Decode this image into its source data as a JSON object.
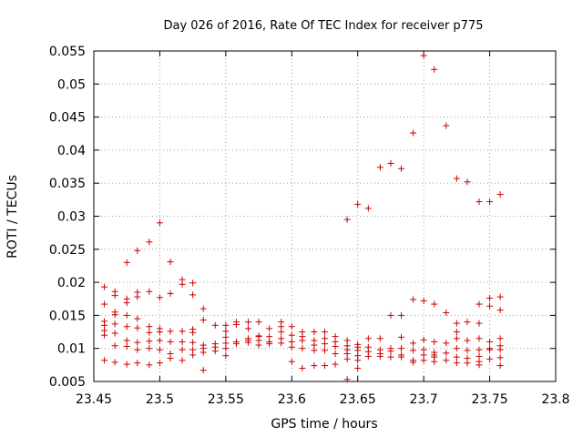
{
  "chart_data": {
    "type": "scatter",
    "title": "Day 026 of 2016, Rate Of TEC Index for receiver p775",
    "xlabel": "GPS time / hours",
    "ylabel": "ROTI / TECUs",
    "xlim": [
      23.45,
      23.8
    ],
    "ylim": [
      0.005,
      0.055
    ],
    "xticks": [
      "23.45",
      "23.5",
      "23.55",
      "23.6",
      "23.65",
      "23.7",
      "23.75",
      "23.8"
    ],
    "yticks": [
      "0.005",
      "0.01",
      "0.015",
      "0.02",
      "0.025",
      "0.03",
      "0.035",
      "0.04",
      "0.045",
      "0.05",
      "0.055"
    ],
    "grid": true,
    "marker": "+",
    "color": "#cc0000",
    "series": [
      {
        "name": "p775",
        "points": [
          [
            23.458,
            0.0193
          ],
          [
            23.458,
            0.0167
          ],
          [
            23.458,
            0.0141
          ],
          [
            23.458,
            0.0135
          ],
          [
            23.458,
            0.0127
          ],
          [
            23.458,
            0.012
          ],
          [
            23.458,
            0.0082
          ],
          [
            23.466,
            0.0186
          ],
          [
            23.466,
            0.018
          ],
          [
            23.466,
            0.0155
          ],
          [
            23.466,
            0.0151
          ],
          [
            23.466,
            0.0137
          ],
          [
            23.466,
            0.0123
          ],
          [
            23.466,
            0.0104
          ],
          [
            23.466,
            0.0079
          ],
          [
            23.475,
            0.023
          ],
          [
            23.475,
            0.0175
          ],
          [
            23.475,
            0.0169
          ],
          [
            23.475,
            0.015
          ],
          [
            23.475,
            0.0133
          ],
          [
            23.475,
            0.0112
          ],
          [
            23.475,
            0.0103
          ],
          [
            23.475,
            0.0076
          ],
          [
            23.483,
            0.0248
          ],
          [
            23.483,
            0.0185
          ],
          [
            23.483,
            0.0178
          ],
          [
            23.483,
            0.0145
          ],
          [
            23.483,
            0.0131
          ],
          [
            23.483,
            0.0109
          ],
          [
            23.483,
            0.0098
          ],
          [
            23.483,
            0.0078
          ],
          [
            23.492,
            0.0261
          ],
          [
            23.492,
            0.0186
          ],
          [
            23.492,
            0.0133
          ],
          [
            23.492,
            0.0124
          ],
          [
            23.492,
            0.0111
          ],
          [
            23.492,
            0.01
          ],
          [
            23.492,
            0.0075
          ],
          [
            23.5,
            0.029
          ],
          [
            23.5,
            0.0177
          ],
          [
            23.5,
            0.013
          ],
          [
            23.5,
            0.0125
          ],
          [
            23.5,
            0.0112
          ],
          [
            23.5,
            0.0098
          ],
          [
            23.5,
            0.0078
          ],
          [
            23.508,
            0.0231
          ],
          [
            23.508,
            0.0183
          ],
          [
            23.508,
            0.0126
          ],
          [
            23.508,
            0.011
          ],
          [
            23.508,
            0.0092
          ],
          [
            23.508,
            0.0085
          ],
          [
            23.517,
            0.0204
          ],
          [
            23.517,
            0.0197
          ],
          [
            23.517,
            0.0126
          ],
          [
            23.517,
            0.011
          ],
          [
            23.517,
            0.0098
          ],
          [
            23.517,
            0.0082
          ],
          [
            23.525,
            0.0199
          ],
          [
            23.525,
            0.0181
          ],
          [
            23.525,
            0.0129
          ],
          [
            23.525,
            0.0124
          ],
          [
            23.525,
            0.0109
          ],
          [
            23.525,
            0.0098
          ],
          [
            23.525,
            0.009
          ],
          [
            23.533,
            0.016
          ],
          [
            23.533,
            0.0143
          ],
          [
            23.533,
            0.0105
          ],
          [
            23.533,
            0.01
          ],
          [
            23.533,
            0.0094
          ],
          [
            23.533,
            0.0067
          ],
          [
            23.542,
            0.0135
          ],
          [
            23.542,
            0.0107
          ],
          [
            23.542,
            0.0102
          ],
          [
            23.542,
            0.0096
          ],
          [
            23.55,
            0.0135
          ],
          [
            23.55,
            0.0126
          ],
          [
            23.55,
            0.0117
          ],
          [
            23.55,
            0.0108
          ],
          [
            23.55,
            0.01
          ],
          [
            23.55,
            0.0089
          ],
          [
            23.558,
            0.014
          ],
          [
            23.558,
            0.0136
          ],
          [
            23.558,
            0.011
          ],
          [
            23.558,
            0.0107
          ],
          [
            23.567,
            0.014
          ],
          [
            23.567,
            0.013
          ],
          [
            23.567,
            0.0115
          ],
          [
            23.567,
            0.0112
          ],
          [
            23.567,
            0.0109
          ],
          [
            23.575,
            0.014
          ],
          [
            23.575,
            0.0119
          ],
          [
            23.575,
            0.0118
          ],
          [
            23.575,
            0.0112
          ],
          [
            23.575,
            0.0105
          ],
          [
            23.583,
            0.013
          ],
          [
            23.583,
            0.0118
          ],
          [
            23.583,
            0.011
          ],
          [
            23.583,
            0.0107
          ],
          [
            23.592,
            0.014
          ],
          [
            23.592,
            0.0133
          ],
          [
            23.592,
            0.0125
          ],
          [
            23.592,
            0.0115
          ],
          [
            23.592,
            0.0108
          ],
          [
            23.6,
            0.0133
          ],
          [
            23.6,
            0.012
          ],
          [
            23.6,
            0.011
          ],
          [
            23.6,
            0.0102
          ],
          [
            23.6,
            0.008
          ],
          [
            23.608,
            0.0125
          ],
          [
            23.608,
            0.0118
          ],
          [
            23.608,
            0.0112
          ],
          [
            23.608,
            0.01
          ],
          [
            23.608,
            0.007
          ],
          [
            23.617,
            0.0125
          ],
          [
            23.617,
            0.0112
          ],
          [
            23.617,
            0.0105
          ],
          [
            23.617,
            0.0097
          ],
          [
            23.617,
            0.0074
          ],
          [
            23.625,
            0.0125
          ],
          [
            23.625,
            0.0115
          ],
          [
            23.625,
            0.0107
          ],
          [
            23.625,
            0.0097
          ],
          [
            23.625,
            0.0074
          ],
          [
            23.633,
            0.0118
          ],
          [
            23.633,
            0.011
          ],
          [
            23.633,
            0.0103
          ],
          [
            23.633,
            0.0092
          ],
          [
            23.633,
            0.0076
          ],
          [
            23.642,
            0.0295
          ],
          [
            23.642,
            0.0112
          ],
          [
            23.642,
            0.0104
          ],
          [
            23.642,
            0.0098
          ],
          [
            23.642,
            0.0092
          ],
          [
            23.642,
            0.0084
          ],
          [
            23.642,
            0.0053
          ],
          [
            23.65,
            0.0318
          ],
          [
            23.65,
            0.0106
          ],
          [
            23.65,
            0.0102
          ],
          [
            23.65,
            0.0097
          ],
          [
            23.65,
            0.0089
          ],
          [
            23.65,
            0.0082
          ],
          [
            23.65,
            0.007
          ],
          [
            23.658,
            0.0312
          ],
          [
            23.658,
            0.0115
          ],
          [
            23.658,
            0.0102
          ],
          [
            23.658,
            0.0095
          ],
          [
            23.658,
            0.0088
          ],
          [
            23.667,
            0.0374
          ],
          [
            23.667,
            0.0115
          ],
          [
            23.667,
            0.0098
          ],
          [
            23.667,
            0.0092
          ],
          [
            23.667,
            0.0088
          ],
          [
            23.675,
            0.038
          ],
          [
            23.675,
            0.015
          ],
          [
            23.675,
            0.01
          ],
          [
            23.675,
            0.0096
          ],
          [
            23.675,
            0.0087
          ],
          [
            23.683,
            0.0372
          ],
          [
            23.683,
            0.015
          ],
          [
            23.683,
            0.0117
          ],
          [
            23.683,
            0.01
          ],
          [
            23.683,
            0.009
          ],
          [
            23.683,
            0.0087
          ],
          [
            23.692,
            0.0426
          ],
          [
            23.692,
            0.0174
          ],
          [
            23.692,
            0.0108
          ],
          [
            23.692,
            0.0097
          ],
          [
            23.692,
            0.0082
          ],
          [
            23.692,
            0.0079
          ],
          [
            23.7,
            0.0543
          ],
          [
            23.7,
            0.0172
          ],
          [
            23.7,
            0.0113
          ],
          [
            23.7,
            0.0098
          ],
          [
            23.7,
            0.009
          ],
          [
            23.7,
            0.0082
          ],
          [
            23.708,
            0.0522
          ],
          [
            23.708,
            0.0167
          ],
          [
            23.708,
            0.011
          ],
          [
            23.708,
            0.0094
          ],
          [
            23.708,
            0.009
          ],
          [
            23.708,
            0.0087
          ],
          [
            23.708,
            0.008
          ],
          [
            23.717,
            0.0437
          ],
          [
            23.717,
            0.0154
          ],
          [
            23.717,
            0.0108
          ],
          [
            23.717,
            0.0093
          ],
          [
            23.717,
            0.0082
          ],
          [
            23.725,
            0.0357
          ],
          [
            23.725,
            0.0138
          ],
          [
            23.725,
            0.0125
          ],
          [
            23.725,
            0.0115
          ],
          [
            23.725,
            0.01
          ],
          [
            23.725,
            0.0087
          ],
          [
            23.725,
            0.0078
          ],
          [
            23.733,
            0.0352
          ],
          [
            23.733,
            0.014
          ],
          [
            23.733,
            0.0112
          ],
          [
            23.733,
            0.0097
          ],
          [
            23.733,
            0.0085
          ],
          [
            23.733,
            0.0078
          ],
          [
            23.742,
            0.0322
          ],
          [
            23.742,
            0.0167
          ],
          [
            23.742,
            0.0138
          ],
          [
            23.742,
            0.0115
          ],
          [
            23.742,
            0.0098
          ],
          [
            23.742,
            0.0088
          ],
          [
            23.742,
            0.008
          ],
          [
            23.742,
            0.0075
          ],
          [
            23.75,
            0.0322
          ],
          [
            23.75,
            0.0176
          ],
          [
            23.75,
            0.0164
          ],
          [
            23.75,
            0.011
          ],
          [
            23.75,
            0.01
          ],
          [
            23.75,
            0.0098
          ],
          [
            23.75,
            0.0084
          ],
          [
            23.758,
            0.0333
          ],
          [
            23.758,
            0.0178
          ],
          [
            23.758,
            0.0158
          ],
          [
            23.758,
            0.0115
          ],
          [
            23.758,
            0.0104
          ],
          [
            23.758,
            0.0098
          ],
          [
            23.758,
            0.0086
          ],
          [
            23.758,
            0.0074
          ]
        ]
      }
    ]
  }
}
